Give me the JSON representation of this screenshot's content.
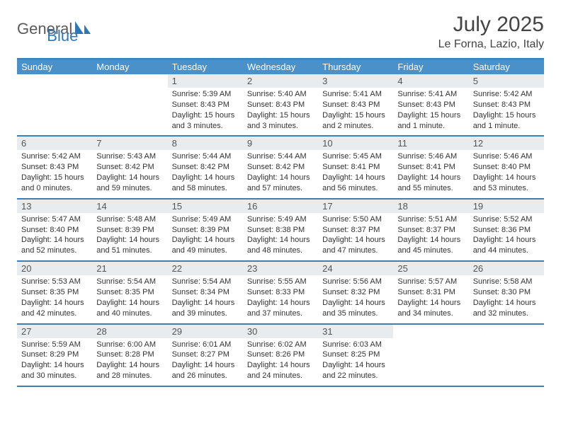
{
  "brand": {
    "name_a": "General",
    "name_b": "Blue",
    "color_a": "#6a6a6a",
    "color_b": "#2e78b5"
  },
  "header": {
    "title": "July 2025",
    "location": "Le Forna, Lazio, Italy"
  },
  "colors": {
    "header_bar": "#4a90c9",
    "header_border": "#3b7fb8",
    "daynum_bg": "#e8ecef",
    "text": "#333333"
  },
  "fonts": {
    "title_size": 30,
    "location_size": 16,
    "dow_size": 13,
    "daynum_size": 13,
    "body_size": 11
  },
  "days_of_week": [
    "Sunday",
    "Monday",
    "Tuesday",
    "Wednesday",
    "Thursday",
    "Friday",
    "Saturday"
  ],
  "weeks": [
    [
      {
        "n": "",
        "sr": "",
        "ss": "",
        "dl": ""
      },
      {
        "n": "",
        "sr": "",
        "ss": "",
        "dl": ""
      },
      {
        "n": "1",
        "sr": "5:39 AM",
        "ss": "8:43 PM",
        "dl": "15 hours and 3 minutes."
      },
      {
        "n": "2",
        "sr": "5:40 AM",
        "ss": "8:43 PM",
        "dl": "15 hours and 3 minutes."
      },
      {
        "n": "3",
        "sr": "5:41 AM",
        "ss": "8:43 PM",
        "dl": "15 hours and 2 minutes."
      },
      {
        "n": "4",
        "sr": "5:41 AM",
        "ss": "8:43 PM",
        "dl": "15 hours and 1 minute."
      },
      {
        "n": "5",
        "sr": "5:42 AM",
        "ss": "8:43 PM",
        "dl": "15 hours and 1 minute."
      }
    ],
    [
      {
        "n": "6",
        "sr": "5:42 AM",
        "ss": "8:43 PM",
        "dl": "15 hours and 0 minutes."
      },
      {
        "n": "7",
        "sr": "5:43 AM",
        "ss": "8:42 PM",
        "dl": "14 hours and 59 minutes."
      },
      {
        "n": "8",
        "sr": "5:44 AM",
        "ss": "8:42 PM",
        "dl": "14 hours and 58 minutes."
      },
      {
        "n": "9",
        "sr": "5:44 AM",
        "ss": "8:42 PM",
        "dl": "14 hours and 57 minutes."
      },
      {
        "n": "10",
        "sr": "5:45 AM",
        "ss": "8:41 PM",
        "dl": "14 hours and 56 minutes."
      },
      {
        "n": "11",
        "sr": "5:46 AM",
        "ss": "8:41 PM",
        "dl": "14 hours and 55 minutes."
      },
      {
        "n": "12",
        "sr": "5:46 AM",
        "ss": "8:40 PM",
        "dl": "14 hours and 53 minutes."
      }
    ],
    [
      {
        "n": "13",
        "sr": "5:47 AM",
        "ss": "8:40 PM",
        "dl": "14 hours and 52 minutes."
      },
      {
        "n": "14",
        "sr": "5:48 AM",
        "ss": "8:39 PM",
        "dl": "14 hours and 51 minutes."
      },
      {
        "n": "15",
        "sr": "5:49 AM",
        "ss": "8:39 PM",
        "dl": "14 hours and 49 minutes."
      },
      {
        "n": "16",
        "sr": "5:49 AM",
        "ss": "8:38 PM",
        "dl": "14 hours and 48 minutes."
      },
      {
        "n": "17",
        "sr": "5:50 AM",
        "ss": "8:37 PM",
        "dl": "14 hours and 47 minutes."
      },
      {
        "n": "18",
        "sr": "5:51 AM",
        "ss": "8:37 PM",
        "dl": "14 hours and 45 minutes."
      },
      {
        "n": "19",
        "sr": "5:52 AM",
        "ss": "8:36 PM",
        "dl": "14 hours and 44 minutes."
      }
    ],
    [
      {
        "n": "20",
        "sr": "5:53 AM",
        "ss": "8:35 PM",
        "dl": "14 hours and 42 minutes."
      },
      {
        "n": "21",
        "sr": "5:54 AM",
        "ss": "8:35 PM",
        "dl": "14 hours and 40 minutes."
      },
      {
        "n": "22",
        "sr": "5:54 AM",
        "ss": "8:34 PM",
        "dl": "14 hours and 39 minutes."
      },
      {
        "n": "23",
        "sr": "5:55 AM",
        "ss": "8:33 PM",
        "dl": "14 hours and 37 minutes."
      },
      {
        "n": "24",
        "sr": "5:56 AM",
        "ss": "8:32 PM",
        "dl": "14 hours and 35 minutes."
      },
      {
        "n": "25",
        "sr": "5:57 AM",
        "ss": "8:31 PM",
        "dl": "14 hours and 34 minutes."
      },
      {
        "n": "26",
        "sr": "5:58 AM",
        "ss": "8:30 PM",
        "dl": "14 hours and 32 minutes."
      }
    ],
    [
      {
        "n": "27",
        "sr": "5:59 AM",
        "ss": "8:29 PM",
        "dl": "14 hours and 30 minutes."
      },
      {
        "n": "28",
        "sr": "6:00 AM",
        "ss": "8:28 PM",
        "dl": "14 hours and 28 minutes."
      },
      {
        "n": "29",
        "sr": "6:01 AM",
        "ss": "8:27 PM",
        "dl": "14 hours and 26 minutes."
      },
      {
        "n": "30",
        "sr": "6:02 AM",
        "ss": "8:26 PM",
        "dl": "14 hours and 24 minutes."
      },
      {
        "n": "31",
        "sr": "6:03 AM",
        "ss": "8:25 PM",
        "dl": "14 hours and 22 minutes."
      },
      {
        "n": "",
        "sr": "",
        "ss": "",
        "dl": ""
      },
      {
        "n": "",
        "sr": "",
        "ss": "",
        "dl": ""
      }
    ]
  ],
  "labels": {
    "sunrise": "Sunrise:",
    "sunset": "Sunset:",
    "daylight": "Daylight:"
  }
}
